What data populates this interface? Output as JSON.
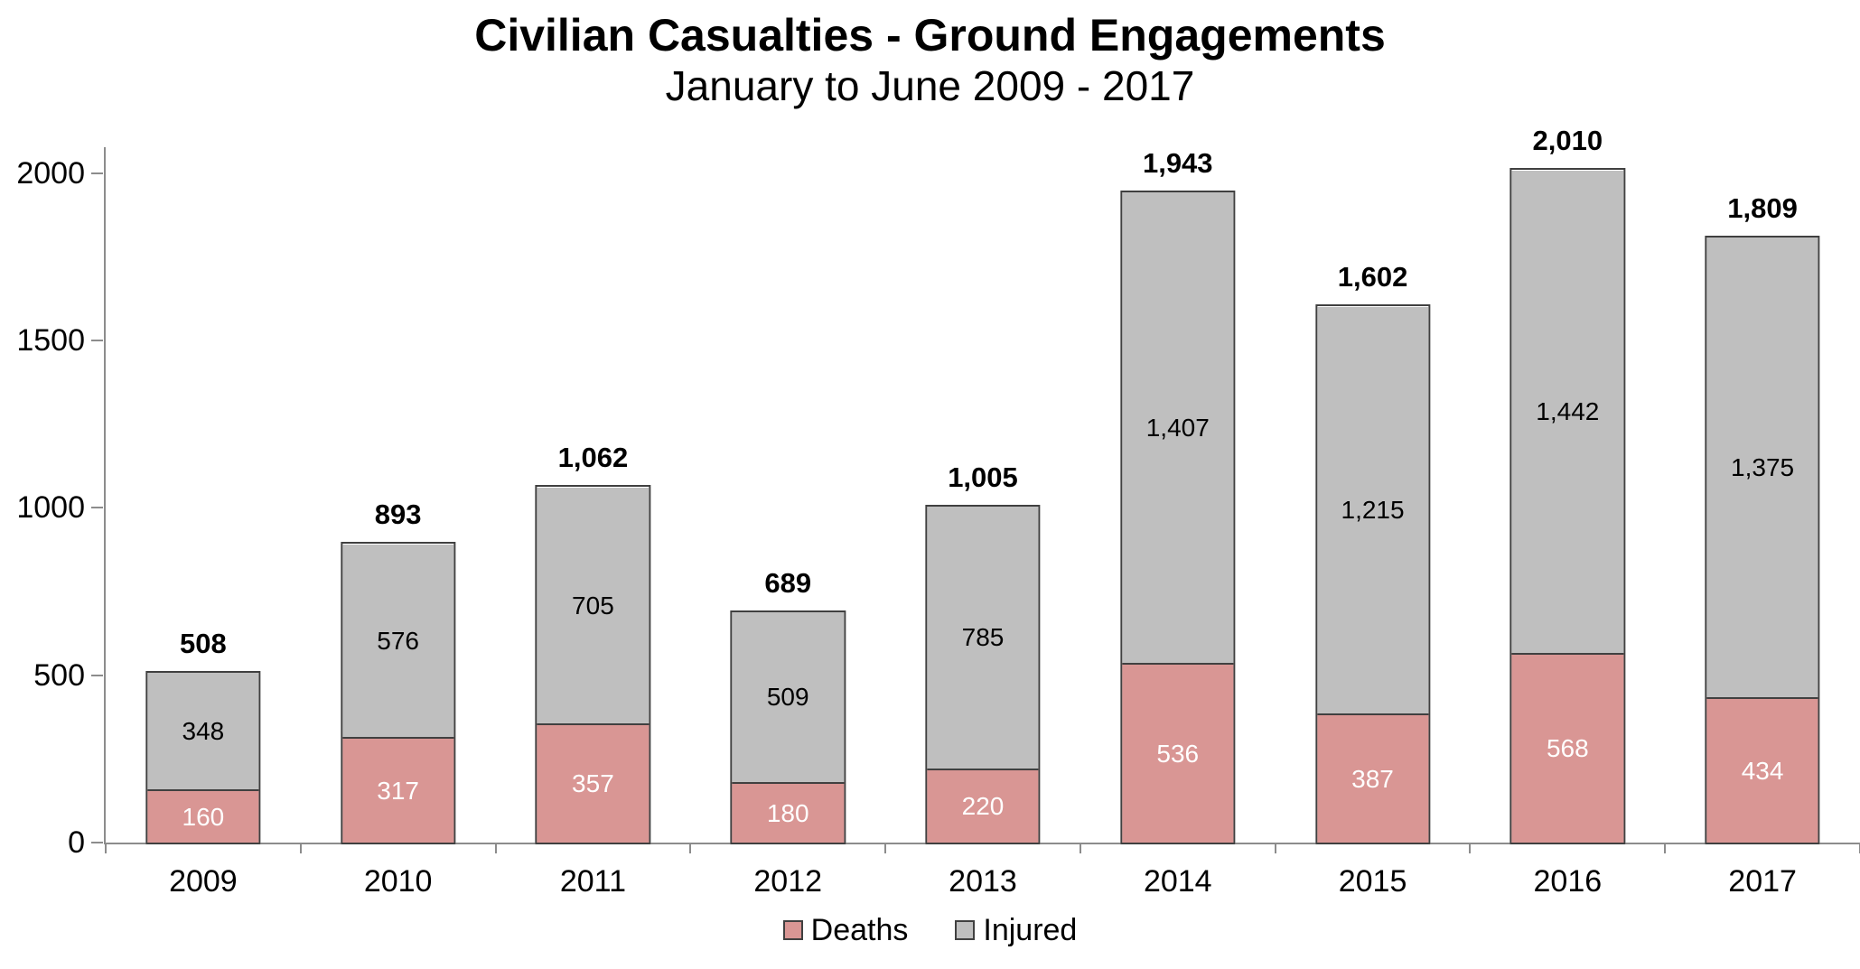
{
  "chart_data": {
    "type": "bar",
    "stacked": true,
    "title": "Civilian Casualties - Ground Engagements",
    "subtitle": "January to June 2009 - 2017",
    "categories": [
      "2009",
      "2010",
      "2011",
      "2012",
      "2013",
      "2014",
      "2015",
      "2016",
      "2017"
    ],
    "series": [
      {
        "name": "Deaths",
        "color": "#d99694",
        "label_color": "#ffffff",
        "values": [
          160,
          317,
          357,
          180,
          220,
          536,
          387,
          568,
          434
        ]
      },
      {
        "name": "Injured",
        "color": "#bfbfbf",
        "label_color": "#000000",
        "values": [
          348,
          576,
          705,
          509,
          785,
          1407,
          1215,
          1442,
          1375
        ]
      }
    ],
    "totals": [
      508,
      893,
      1062,
      689,
      1005,
      1943,
      1602,
      2010,
      1809
    ],
    "total_labels": [
      "508",
      "893",
      "1,062",
      "689",
      "1,005",
      "1,943",
      "1,602",
      "2,010",
      "1,809"
    ],
    "y_ticks": [
      0,
      500,
      1000,
      1500,
      2000
    ],
    "y_tick_labels": [
      "0",
      "500",
      "1000",
      "1500",
      "2000"
    ],
    "ylim": [
      0,
      2078
    ],
    "xlabel": "",
    "ylabel": "",
    "grid": false,
    "legend": [
      "Deaths",
      "Injured"
    ],
    "legend_position": "bottom",
    "axis_color": "#8c8c8c",
    "bar_border_color": "#404040"
  }
}
